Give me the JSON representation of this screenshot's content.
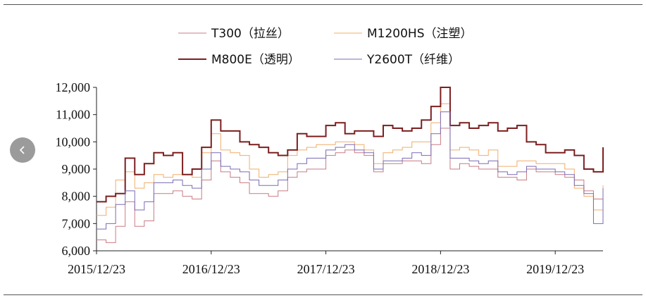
{
  "chart_data": {
    "type": "line",
    "title": "",
    "xlabel": "",
    "ylabel": "",
    "ylim": [
      6000,
      12000
    ],
    "yticks": [
      6000,
      7000,
      8000,
      9000,
      10000,
      11000,
      12000
    ],
    "ytick_labels": [
      "6,000",
      "7,000",
      "8,000",
      "9,000",
      "10,000",
      "11,000",
      "12,000"
    ],
    "xtick_labels": [
      "2015/12/23",
      "2016/12/23",
      "2017/12/23",
      "2018/12/23",
      "2019/12/23"
    ],
    "grid": false,
    "legend_position": "top",
    "x": [
      "2015-12",
      "2016-01",
      "2016-02",
      "2016-03",
      "2016-04",
      "2016-05",
      "2016-06",
      "2016-07",
      "2016-08",
      "2016-09",
      "2016-10",
      "2016-11",
      "2016-12",
      "2017-01",
      "2017-02",
      "2017-03",
      "2017-04",
      "2017-05",
      "2017-06",
      "2017-07",
      "2017-08",
      "2017-09",
      "2017-10",
      "2017-11",
      "2017-12",
      "2018-01",
      "2018-02",
      "2018-03",
      "2018-04",
      "2018-05",
      "2018-06",
      "2018-07",
      "2018-08",
      "2018-09",
      "2018-10",
      "2018-11",
      "2018-12",
      "2019-01",
      "2019-02",
      "2019-03",
      "2019-04",
      "2019-05",
      "2019-06",
      "2019-07",
      "2019-08",
      "2019-09",
      "2019-10",
      "2019-11",
      "2019-12",
      "2020-01",
      "2020-02",
      "2020-03",
      "2020-04",
      "2020-05"
    ],
    "series": [
      {
        "name": "T300（拉丝）",
        "color": "#c97b84",
        "width": 1,
        "values": [
          6400,
          6300,
          6900,
          7800,
          6900,
          7100,
          8100,
          8100,
          8200,
          8000,
          7900,
          8600,
          9300,
          8900,
          8700,
          8500,
          8100,
          8100,
          8000,
          8200,
          8700,
          8900,
          9000,
          9000,
          9500,
          9600,
          9700,
          9600,
          9500,
          8900,
          9200,
          9200,
          9300,
          9300,
          9200,
          9900,
          10500,
          9000,
          9200,
          9100,
          9000,
          9000,
          8700,
          8700,
          8600,
          9000,
          8900,
          8900,
          8800,
          8700,
          8600,
          8200,
          7900,
          8300
        ]
      },
      {
        "name": "M1200HS（注塑）",
        "color": "#f0ad6a",
        "width": 1,
        "values": [
          7300,
          7600,
          8600,
          8900,
          8300,
          8500,
          8800,
          8700,
          8800,
          8800,
          8700,
          9600,
          10300,
          9700,
          9600,
          9500,
          9000,
          8700,
          8800,
          8900,
          9500,
          9700,
          9800,
          9900,
          9900,
          10000,
          10000,
          9900,
          9700,
          9200,
          9600,
          9700,
          9800,
          10000,
          10000,
          10700,
          11400,
          9700,
          9800,
          9700,
          9500,
          9700,
          9100,
          9100,
          9300,
          9300,
          9200,
          9200,
          9200,
          9000,
          8300,
          8000,
          7500,
          8400
        ]
      },
      {
        "name": "M800E（透明）",
        "color": "#7b1f1f",
        "width": 2,
        "values": [
          7800,
          8000,
          8100,
          9400,
          8800,
          9200,
          9600,
          9500,
          9600,
          8800,
          9000,
          9800,
          10800,
          10400,
          10400,
          10000,
          9900,
          9800,
          9600,
          9500,
          9700,
          10300,
          10200,
          10200,
          10600,
          10700,
          10300,
          10400,
          10400,
          10200,
          10600,
          10500,
          10400,
          10500,
          10800,
          11300,
          12000,
          10600,
          10700,
          10500,
          10600,
          10700,
          10400,
          10500,
          10600,
          10000,
          9900,
          9600,
          9600,
          9700,
          9500,
          9000,
          8900,
          9800
        ]
      },
      {
        "name": "Y2600T（纤维）",
        "color": "#7a6bb5",
        "width": 1,
        "values": [
          6800,
          7000,
          7700,
          8200,
          7500,
          7800,
          8500,
          8500,
          8600,
          8400,
          8300,
          9000,
          9600,
          9100,
          9000,
          8900,
          8600,
          8400,
          8400,
          8600,
          9000,
          9200,
          9400,
          9400,
          9700,
          9800,
          9900,
          9700,
          9600,
          9000,
          9300,
          9300,
          9400,
          9600,
          9500,
          10300,
          11100,
          9400,
          9400,
          9300,
          9200,
          9300,
          8900,
          8800,
          8900,
          9100,
          9000,
          9000,
          8900,
          8800,
          8400,
          8100,
          7000,
          8300
        ]
      }
    ]
  },
  "ui": {
    "prev_button_icon": "chevron-left-icon"
  }
}
